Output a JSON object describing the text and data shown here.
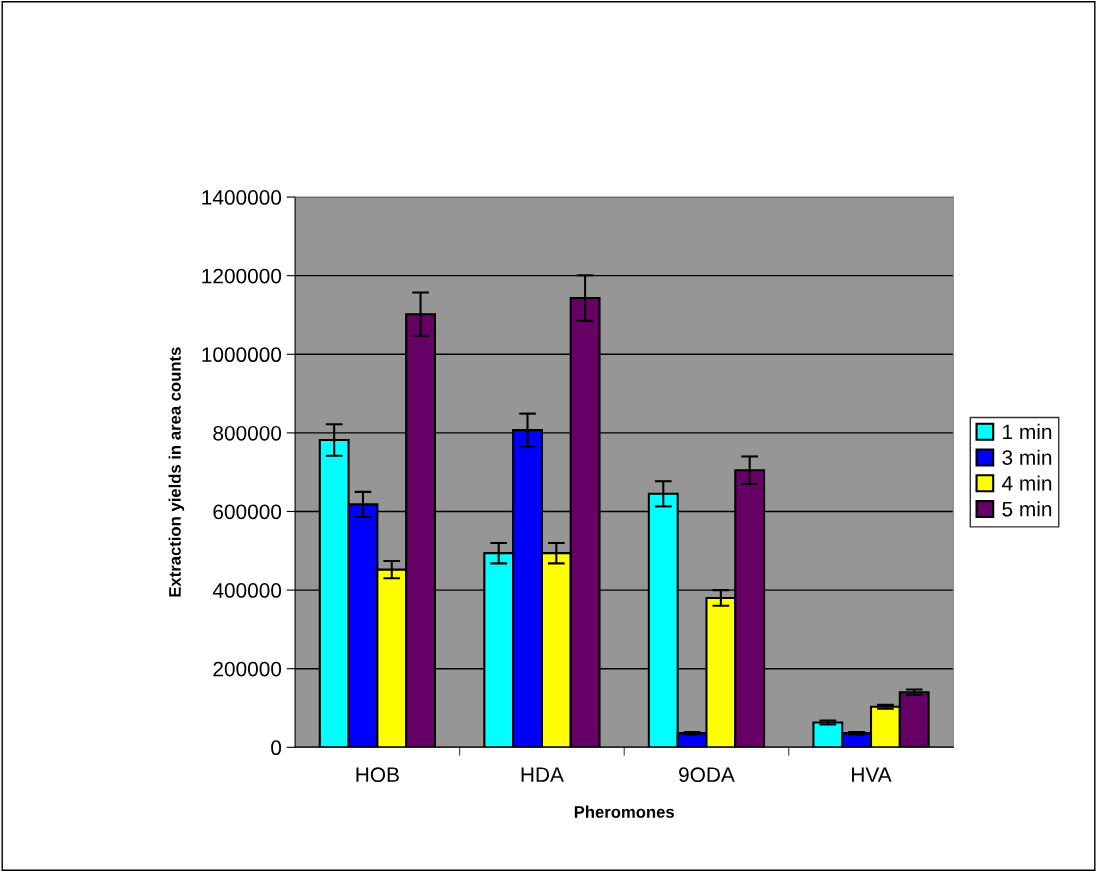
{
  "chart_data": {
    "type": "bar",
    "xlabel": "Pheromones",
    "ylabel": "Extraction yields in area counts",
    "categories": [
      "HOB",
      "HDA",
      "9ODA",
      "HVA"
    ],
    "series": [
      {
        "name": "1 min",
        "color": "#00ffff",
        "values": [
          782000,
          494000,
          645000,
          63000
        ],
        "errors": [
          40000,
          26000,
          32000,
          5000
        ]
      },
      {
        "name": "3 min",
        "color": "#0000ff",
        "values": [
          618000,
          807000,
          36000,
          36000
        ],
        "errors": [
          32000,
          42000,
          3000,
          3000
        ]
      },
      {
        "name": "4 min",
        "color": "#ffff00",
        "values": [
          452000,
          494000,
          380000,
          103000
        ],
        "errors": [
          22000,
          26000,
          20000,
          5000
        ]
      },
      {
        "name": "5 min",
        "color": "#660066",
        "values": [
          1102000,
          1143000,
          705000,
          140000
        ],
        "errors": [
          55000,
          58000,
          35000,
          7000
        ]
      }
    ],
    "ylim": [
      0,
      1400000
    ],
    "yticks": [
      0,
      200000,
      400000,
      600000,
      800000,
      1000000,
      1200000,
      1400000
    ],
    "grid": "y",
    "legend": "right"
  }
}
